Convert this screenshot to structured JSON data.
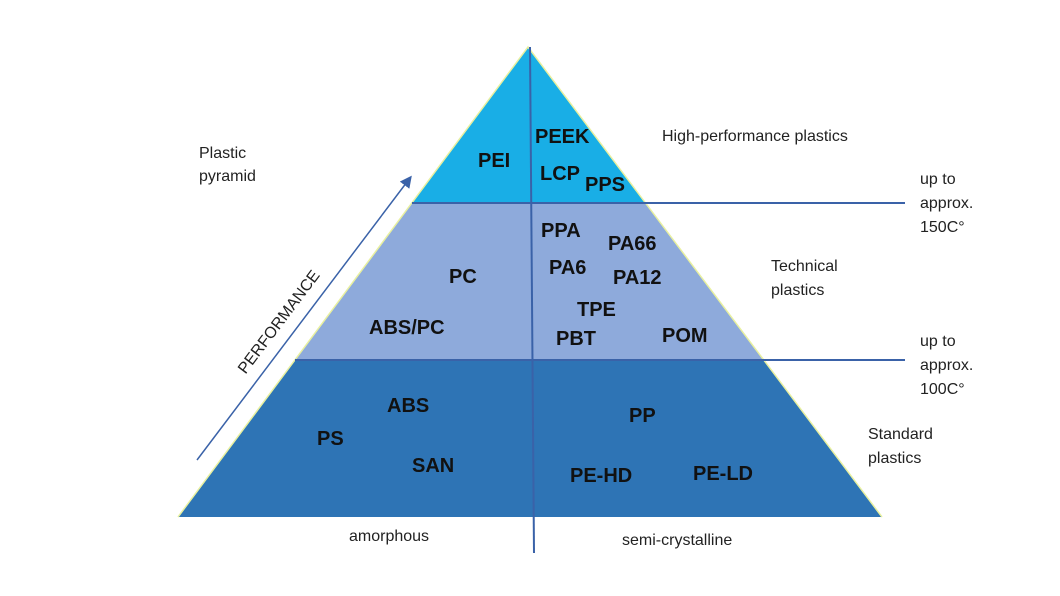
{
  "title": [
    "Plastic",
    "pyramid"
  ],
  "axis_label": "PERFORMANCE",
  "colors": {
    "top": "#19aee6",
    "middle": "#8eaadb",
    "bottom": "#2e74b5",
    "lines": "#3a62a8"
  },
  "tiers": {
    "top": {
      "name": "High-performance plastics",
      "amorphous": [
        "PEI"
      ],
      "semi_crystalline": [
        "PEEK",
        "LCP",
        "PPS"
      ]
    },
    "middle": {
      "name": [
        "Technical",
        "plastics"
      ],
      "amorphous": [
        "PC",
        "ABS/PC"
      ],
      "semi_crystalline": [
        "PPA",
        "PA66",
        "PA6",
        "PA12",
        "TPE",
        "PBT",
        "POM"
      ]
    },
    "bottom": {
      "name": [
        "Standard",
        "plastics"
      ],
      "amorphous": [
        "ABS",
        "PS",
        "SAN"
      ],
      "semi_crystalline": [
        "PP",
        "PE-HD",
        "PE-LD"
      ]
    }
  },
  "thresholds": [
    {
      "lines": [
        "up to",
        "approx.",
        "150C°"
      ]
    },
    {
      "lines": [
        "up to",
        "approx.",
        "100C°"
      ]
    }
  ],
  "columns": {
    "left": "amorphous",
    "right": "semi-crystalline"
  }
}
